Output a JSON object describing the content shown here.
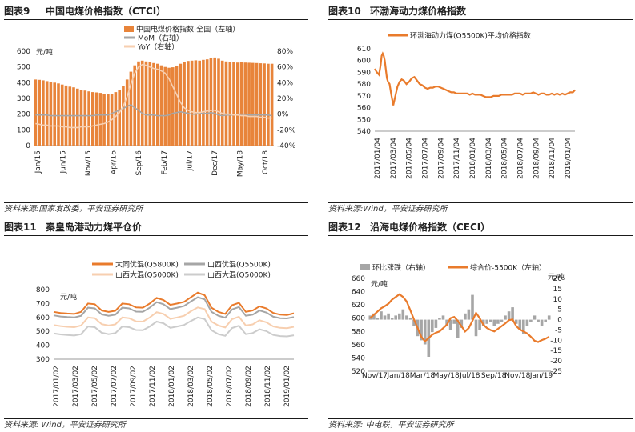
{
  "colors": {
    "orange": "#e97b2c",
    "peach": "#f2b48a",
    "lightpeach": "#f7cfb0",
    "gray": "#a6a6a6",
    "lightgray": "#cccccc",
    "barorange": "#e8843a"
  },
  "chart_data": [
    {
      "type": "bar",
      "fig_label": "图表9",
      "title": "中国电煤价格指数（CTCI）",
      "source": "资料来源:国家发改委，平安证券研究所",
      "unit_left": "元/吨",
      "yleft_ticks": [
        "0",
        "50",
        "100",
        "150",
        "200",
        "250",
        "300",
        "350",
        "400",
        "450",
        "500",
        "550",
        "600"
      ],
      "yright_ticks": [
        "-40%",
        "-20%",
        "0%",
        "20%",
        "40%",
        "60%",
        "80%"
      ],
      "ylim_left": [
        0,
        600
      ],
      "ylim_right": [
        -40,
        80
      ],
      "x_ticks": [
        "Jan/15",
        "Jun/15",
        "Nov/15",
        "Apr/16",
        "Sep/16",
        "Feb/17",
        "Jul/17",
        "Dec/17",
        "May/18",
        "Oct/18"
      ],
      "legend": [
        "中国电煤价格指数-全国（左轴）",
        "MoM（右轴）",
        "YoY（右轴）"
      ],
      "legend_position": "top",
      "bar_values": [
        420,
        418,
        415,
        410,
        405,
        400,
        395,
        388,
        382,
        375,
        370,
        362,
        356,
        350,
        345,
        340,
        338,
        335,
        330,
        328,
        330,
        340,
        355,
        380,
        420,
        470,
        510,
        535,
        540,
        535,
        530,
        525,
        520,
        510,
        500,
        495,
        498,
        505,
        520,
        532,
        538,
        540,
        542,
        540,
        545,
        548,
        555,
        560,
        552,
        540,
        535,
        532,
        530,
        528,
        530,
        528,
        527,
        526,
        525,
        523,
        522,
        520,
        520
      ],
      "series": [
        {
          "name": "MoM（右轴）",
          "values": [
            -1,
            -1,
            -1,
            -1,
            -2,
            -2,
            -2,
            -2,
            -2,
            -2,
            -2,
            -2,
            -2,
            -2,
            -2,
            -2,
            -1,
            -1,
            -1,
            -1,
            1,
            3,
            5,
            7,
            10,
            12,
            8,
            5,
            1,
            -1,
            -1,
            -1,
            -2,
            -2,
            -2,
            -1,
            1,
            2,
            3,
            2,
            1,
            0,
            0,
            1,
            1,
            1,
            2,
            1,
            -1,
            -2,
            -1,
            -1,
            -1,
            0,
            0,
            0,
            -1,
            -1,
            -1,
            -1,
            -1,
            -1,
            -2
          ]
        },
        {
          "name": "YoY（右轴）",
          "values": [
            -12,
            -13,
            -14,
            -14,
            -15,
            -15,
            -15,
            -16,
            -16,
            -17,
            -17,
            -17,
            -16,
            -16,
            -16,
            -15,
            -14,
            -13,
            -12,
            -10,
            -7,
            -3,
            2,
            10,
            22,
            38,
            52,
            60,
            63,
            62,
            60,
            58,
            57,
            55,
            52,
            45,
            35,
            25,
            15,
            8,
            5,
            3,
            2,
            2,
            3,
            4,
            5,
            5,
            3,
            1,
            0,
            0,
            -1,
            -1,
            -2,
            -2,
            -3,
            -3,
            -3,
            -4,
            -4,
            -5,
            -5
          ]
        }
      ]
    },
    {
      "type": "line",
      "fig_label": "图表10",
      "title": "环渤海动力煤价格指数",
      "source": "资料来源:Wind，平安证券研究所",
      "legend": [
        "环渤海动力煤(Q5500K)平均价格指数"
      ],
      "y_ticks": [
        "540",
        "550",
        "560",
        "570",
        "580",
        "590",
        "600",
        "610"
      ],
      "ylim": [
        540,
        610
      ],
      "x_ticks": [
        "2017/01/04",
        "2017/03/04",
        "2017/05/04",
        "2017/07/04",
        "2017/09/04",
        "2017/11/04",
        "2018/01/04",
        "2018/03/04",
        "2018/05/04",
        "2018/07/04",
        "2018/09/04",
        "2018/11/04",
        "2019/01/04"
      ],
      "x": [
        0,
        8,
        16,
        22,
        26,
        30,
        34,
        38,
        42,
        46,
        50,
        56,
        62,
        70,
        78,
        86,
        94,
        102,
        110,
        120,
        130,
        140,
        150,
        160,
        170,
        180,
        190,
        200,
        210,
        220,
        230,
        240,
        250,
        260,
        270,
        280,
        290,
        300,
        310,
        320,
        330,
        340,
        350,
        360,
        370,
        380,
        390,
        400,
        410,
        420,
        430,
        440,
        450,
        460,
        470,
        480,
        490,
        500,
        510,
        520,
        530,
        540,
        550,
        560,
        570,
        580,
        590,
        600,
        610,
        620,
        630,
        640,
        650,
        660,
        670,
        680,
        690,
        700,
        710,
        720,
        730,
        740,
        750,
        758
      ],
      "values": [
        593,
        590,
        588,
        596,
        604,
        606,
        604,
        600,
        592,
        585,
        582,
        580,
        572,
        562,
        570,
        578,
        582,
        584,
        583,
        580,
        582,
        585,
        586,
        583,
        580,
        579,
        577,
        576,
        577,
        577,
        578,
        578,
        577,
        576,
        575,
        574,
        573,
        573,
        572,
        572,
        572,
        572,
        572,
        571,
        572,
        571,
        571,
        571,
        570,
        569,
        569,
        569,
        570,
        570,
        570,
        571,
        571,
        571,
        571,
        571,
        572,
        572,
        572,
        571,
        572,
        572,
        572,
        573,
        572,
        571,
        572,
        572,
        571,
        571,
        572,
        571,
        572,
        571,
        572,
        571,
        572,
        573,
        573,
        575
      ]
    },
    {
      "type": "line",
      "fig_label": "图表11",
      "title": "秦皇岛港动力煤平仓价",
      "source": "资料来源: Wind，平安证券研究所",
      "unit": "元/吨",
      "legend": [
        "大同优混(Q5800K)",
        "山西优混(Q5500K)",
        "山西大混(Q5000K)",
        "山西大混(Q5000K)"
      ],
      "y_ticks": [
        "300",
        "400",
        "500",
        "600",
        "700",
        "800"
      ],
      "ylim": [
        300,
        800
      ],
      "x_ticks": [
        "2017/01/02",
        "2017/03/02",
        "2017/05/02",
        "2017/07/02",
        "2017/09/02",
        "2017/11/02",
        "2018/01/02",
        "2018/03/02",
        "2018/05/02",
        "2018/07/02",
        "2018/09/02",
        "2018/11/02",
        "2019/01/02"
      ],
      "series": [
        {
          "name": "大同优混(Q5800K)",
          "values": [
            640,
            632,
            628,
            625,
            640,
            700,
            695,
            650,
            640,
            648,
            700,
            695,
            672,
            670,
            700,
            740,
            725,
            690,
            700,
            712,
            745,
            778,
            760,
            670,
            640,
            625,
            688,
            705,
            640,
            650,
            680,
            665,
            632,
            620,
            618,
            630
          ]
        },
        {
          "name": "山西优混(Q5500K)",
          "values": [
            615,
            607,
            603,
            600,
            612,
            670,
            665,
            622,
            612,
            620,
            670,
            665,
            642,
            640,
            670,
            710,
            695,
            660,
            670,
            682,
            715,
            745,
            730,
            640,
            612,
            598,
            658,
            675,
            612,
            620,
            650,
            635,
            605,
            595,
            593,
            603
          ]
        },
        {
          "name": "山西大混(Q5000K)",
          "values": [
            545,
            538,
            533,
            530,
            542,
            600,
            595,
            552,
            542,
            550,
            600,
            595,
            572,
            570,
            600,
            638,
            625,
            590,
            600,
            612,
            645,
            672,
            660,
            570,
            542,
            528,
            588,
            605,
            542,
            550,
            580,
            565,
            535,
            525,
            523,
            533
          ]
        },
        {
          "name": "山西大混(Q5000K)",
          "values": [
            485,
            478,
            474,
            470,
            480,
            535,
            530,
            490,
            480,
            488,
            535,
            530,
            510,
            508,
            535,
            570,
            558,
            525,
            535,
            546,
            575,
            600,
            588,
            508,
            480,
            468,
            524,
            540,
            480,
            488,
            515,
            502,
            474,
            466,
            464,
            472
          ]
        }
      ]
    },
    {
      "type": "bar",
      "fig_label": "图表12",
      "title": "沿海电煤价格指数（CECI）",
      "source": "资料来源: 中电联，平安证券研究所",
      "unit_left": "元/吨",
      "unit_right": "元/吨",
      "legend": [
        "环比涨跌（右轴）",
        "综合价-5500K（左轴）"
      ],
      "yleft_ticks": [
        "520",
        "540",
        "560",
        "580",
        "600",
        "620",
        "640",
        "660"
      ],
      "yright_ticks": [
        "-25",
        "-20",
        "-15",
        "-10",
        "-5",
        "0",
        "5",
        "10",
        "15",
        "20"
      ],
      "ylim_left": [
        520,
        660
      ],
      "ylim_right": [
        -25,
        20
      ],
      "x_ticks": [
        "Nov/17",
        "Jan/18",
        "Mar/18",
        "May/18",
        "Jul/18",
        "Sep/18",
        "Nov/18",
        "Jan/19"
      ],
      "bar_values": [
        2,
        3,
        1,
        4,
        2,
        3,
        1,
        2,
        3,
        5,
        2,
        1,
        -3,
        -8,
        -10,
        -12,
        -18,
        -6,
        -4,
        1,
        2,
        -3,
        -5,
        -2,
        -9,
        -4,
        3,
        5,
        12,
        -8,
        -5,
        -3,
        -2,
        -1,
        -3,
        -2,
        -1,
        2,
        4,
        6,
        -2,
        -5,
        -7,
        -3,
        -1,
        2,
        -1,
        -3,
        -1,
        2
      ],
      "series": [
        {
          "name": "综合价-5500K（左轴）",
          "values": [
            600,
            605,
            610,
            615,
            618,
            622,
            628,
            632,
            636,
            632,
            625,
            612,
            598,
            585,
            572,
            565,
            570,
            575,
            578,
            580,
            585,
            590,
            600,
            602,
            596,
            588,
            580,
            585,
            596,
            608,
            600,
            590,
            585,
            582,
            580,
            584,
            588,
            592,
            597,
            598,
            588,
            583,
            580,
            577,
            572,
            566,
            564,
            567,
            569,
            572
          ]
        }
      ]
    }
  ]
}
